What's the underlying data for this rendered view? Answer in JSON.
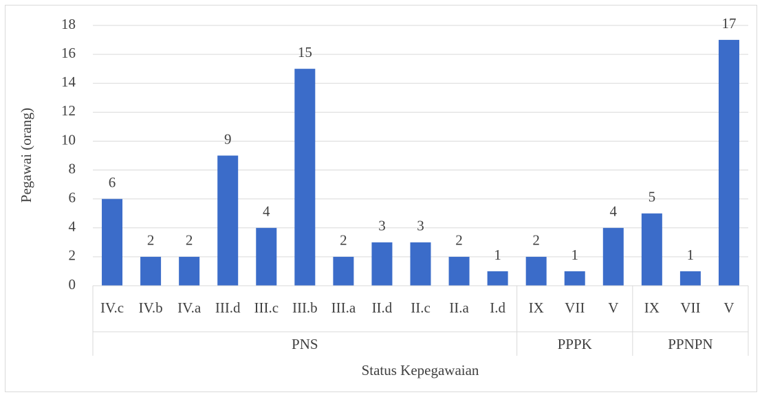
{
  "chart_data": {
    "type": "bar",
    "ylabel": "Pegawai (orang)",
    "xlabel": "Status Kepegawaian",
    "groups": [
      {
        "name": "PNS",
        "categories": [
          "IV.c",
          "IV.b",
          "IV.a",
          "III.d",
          "III.c",
          "III.b",
          "III.a",
          "II.d",
          "II.c",
          "II.a",
          "I.d"
        ],
        "values": [
          6,
          2,
          2,
          9,
          4,
          15,
          2,
          3,
          3,
          2,
          1
        ]
      },
      {
        "name": "PPPK",
        "categories": [
          "IX",
          "VII",
          "V"
        ],
        "values": [
          2,
          1,
          4
        ]
      },
      {
        "name": "PPNPN",
        "categories": [
          "IX",
          "VII",
          "V"
        ],
        "values": [
          5,
          1,
          17
        ]
      }
    ],
    "color": "#3b6cc9",
    "ylim": [
      0,
      18
    ],
    "yticks": [
      0,
      2,
      4,
      6,
      8,
      10,
      12,
      14,
      16,
      18
    ],
    "grid": true
  }
}
